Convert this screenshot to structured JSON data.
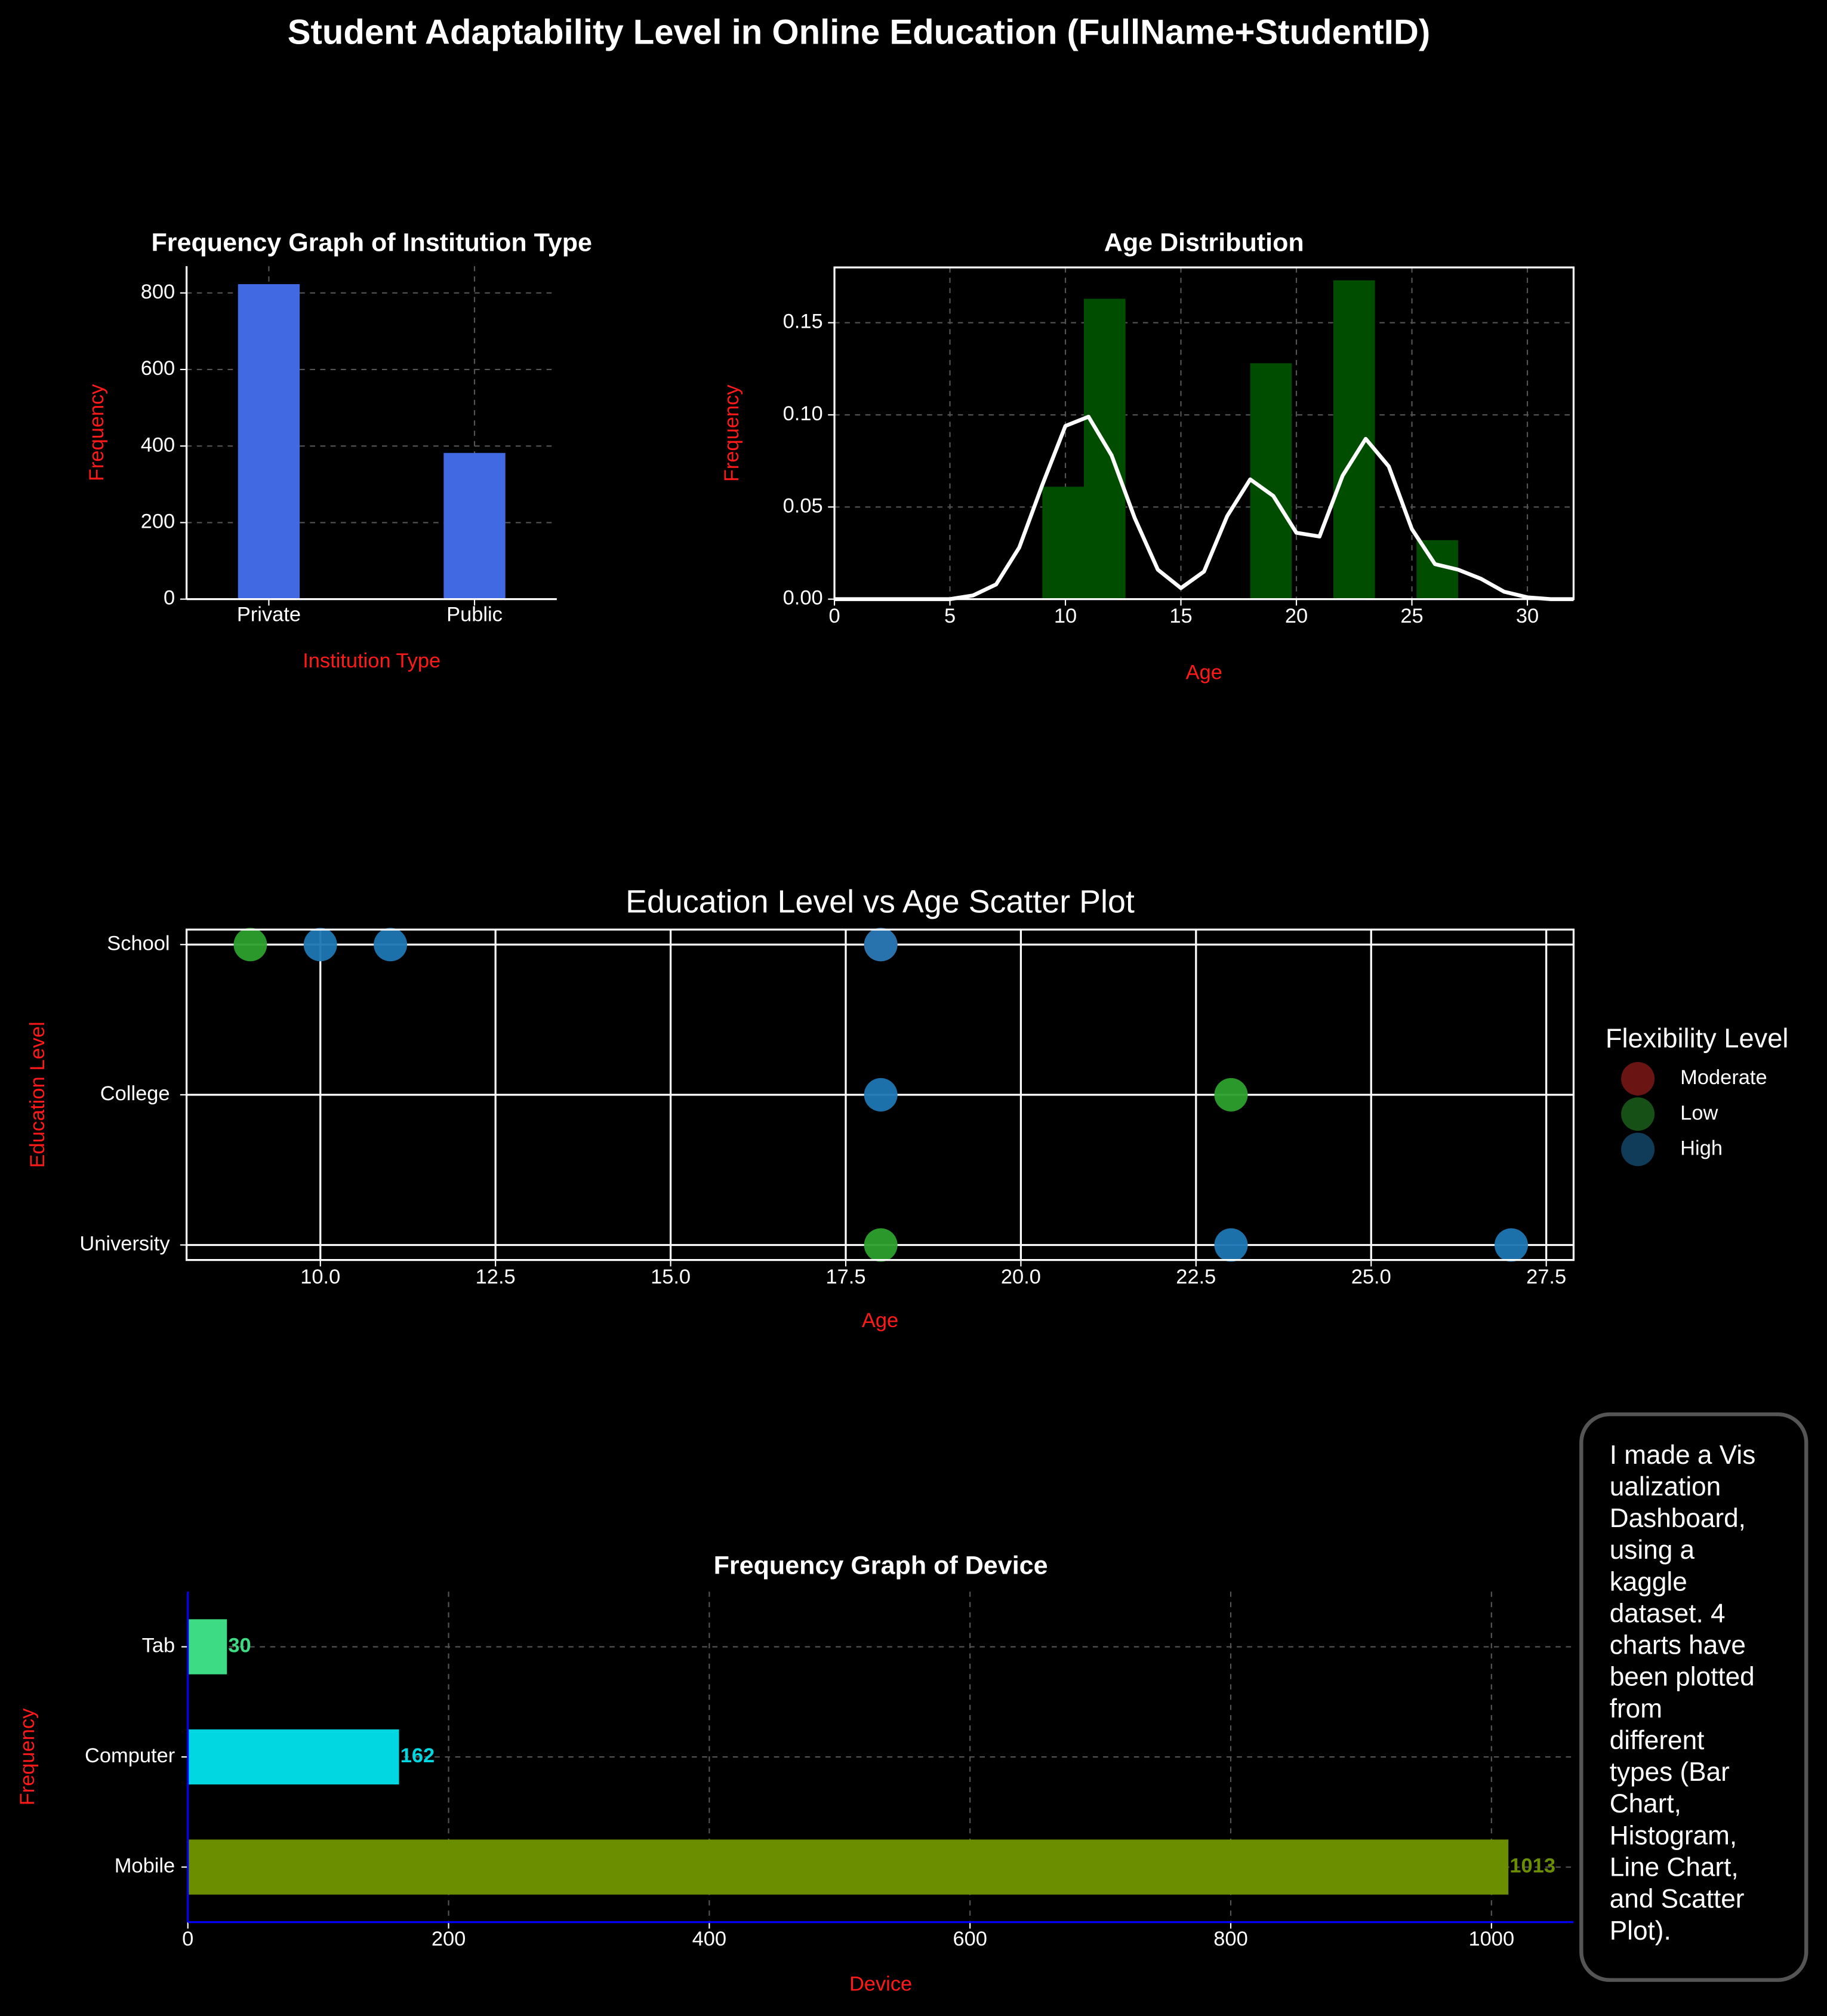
{
  "title": "Student Adaptability Level in Online Education (FullName+StudentID)",
  "chart_data": [
    {
      "type": "bar",
      "title": "Frequency Graph of Institution Type",
      "xlabel": "Institution Type",
      "ylabel": "Frequency",
      "categories": [
        "Private",
        "Public"
      ],
      "values": [
        823,
        382
      ],
      "color": "#4169e1",
      "ylim": [
        0,
        870
      ],
      "yticks": [
        0,
        200,
        400,
        600,
        800
      ],
      "grid": true
    },
    {
      "type": "histogram",
      "title": "Age Distribution",
      "xlabel": "Age",
      "ylabel": "Frequency",
      "bins": [
        9,
        10.8,
        12.6,
        14.4,
        16.2,
        18,
        19.8,
        21.6,
        23.4,
        25.2,
        27
      ],
      "values": [
        0.061,
        0.163,
        0,
        0,
        0,
        0.128,
        0,
        0.173,
        0,
        0.032
      ],
      "color": "#004d00",
      "kde": {
        "color": "#ffffff",
        "x": [
          0,
          1,
          2,
          3,
          4,
          5,
          6,
          7,
          8,
          9,
          10,
          11,
          12,
          13,
          14,
          15,
          16,
          17,
          18,
          19,
          20,
          21,
          22,
          23,
          24,
          25,
          26,
          27,
          28,
          29,
          30,
          31,
          32
        ],
        "values": [
          0,
          0,
          0,
          0,
          0,
          0,
          0.002,
          0.008,
          0.028,
          0.062,
          0.094,
          0.099,
          0.078,
          0.044,
          0.016,
          0.006,
          0.015,
          0.045,
          0.065,
          0.056,
          0.036,
          0.034,
          0.067,
          0.087,
          0.072,
          0.038,
          0.019,
          0.016,
          0.011,
          0.004,
          0.001,
          0,
          0
        ]
      },
      "xlim": [
        0,
        32
      ],
      "ylim": [
        0,
        0.18
      ],
      "xticks": [
        0,
        5,
        10,
        15,
        20,
        25,
        30
      ],
      "yticks": [
        {
          "value": 0,
          "label": "0.00"
        },
        {
          "value": 0.05,
          "label": "0.05"
        },
        {
          "value": 0.1,
          "label": "0.10"
        },
        {
          "value": 0.15,
          "label": "0.15"
        }
      ],
      "grid": true
    },
    {
      "type": "scatter",
      "title": "Education Level vs Age Scatter Plot",
      "xlabel": "Age",
      "ylabel": "Education Level",
      "categories": [
        "University",
        "College",
        "School"
      ],
      "legend_title": "Flexibility Level",
      "series": [
        {
          "name": "Moderate",
          "color": "#d62728",
          "x": [
            18
          ],
          "values": [
            "School"
          ]
        },
        {
          "name": "Low",
          "color": "#2ca02c",
          "x": [
            9,
            23,
            18
          ],
          "values": [
            "School",
            "College",
            "University"
          ]
        },
        {
          "name": "High",
          "color": "#1f77b4",
          "x": [
            10,
            11,
            18,
            18,
            23,
            27
          ],
          "values": [
            "School",
            "School",
            "School",
            "College",
            "University",
            "University"
          ]
        }
      ],
      "xlim": [
        8.09,
        27.89
      ],
      "xticks": [
        {
          "value": 10,
          "label": "10.0"
        },
        {
          "value": 12.5,
          "label": "12.5"
        },
        {
          "value": 15,
          "label": "15.0"
        },
        {
          "value": 17.5,
          "label": "17.5"
        },
        {
          "value": 20,
          "label": "20.0"
        },
        {
          "value": 22.5,
          "label": "22.5"
        },
        {
          "value": 25,
          "label": "25.0"
        },
        {
          "value": 27.5,
          "label": "27.5"
        }
      ],
      "grid": true
    },
    {
      "type": "barh",
      "title": "Frequency Graph of Device",
      "xlabel": "Device",
      "ylabel": "Frequency",
      "categories": [
        "Mobile",
        "Computer",
        "Tab"
      ],
      "values": [
        1013,
        162,
        30
      ],
      "colors": [
        "#6b8e00",
        "#00d7e0",
        "#3ddc84"
      ],
      "xlim": [
        0,
        1063
      ],
      "xticks": [
        0,
        200,
        400,
        600,
        800,
        1000
      ],
      "grid": true
    }
  ],
  "note": [
    "I made a Vis",
    "ualization",
    "Dashboard,",
    "using a",
    "kaggle",
    "dataset. 4",
    "charts have",
    "been plotted",
    "from",
    "different",
    "types (Bar",
    "Chart,",
    "Histogram,",
    "Line Chart,",
    "and Scatter",
    "Plot)."
  ]
}
